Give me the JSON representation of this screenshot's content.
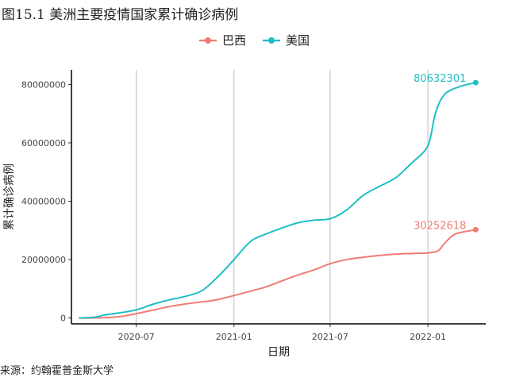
{
  "figure": {
    "title": "图15.1 美洲主要疫情国家累计确诊病例",
    "source": "来源：约翰霍普金斯大学"
  },
  "chart_data": {
    "type": "line",
    "title": "图15.1 美洲主要疫情国家累计确诊病例",
    "xlabel": "日期",
    "ylabel": "累计确诊病例",
    "xlim": [
      "2020-03-01",
      "2022-04-20"
    ],
    "ylim": [
      -2000000,
      85000000
    ],
    "x_ticks": [
      "2020-07",
      "2021-01",
      "2021-07",
      "2022-01"
    ],
    "x_tick_dates": [
      "2020-07-01",
      "2021-01-01",
      "2021-07-01",
      "2022-01-01"
    ],
    "y_ticks": [
      0,
      20000000,
      40000000,
      60000000,
      80000000
    ],
    "grid": "vertical-major",
    "legend": "top",
    "series": [
      {
        "name": "巴西",
        "color": "#F07C74",
        "x": [
          "2020-03-15",
          "2020-05-01",
          "2020-06-01",
          "2020-07-01",
          "2020-08-01",
          "2020-09-01",
          "2020-10-01",
          "2020-11-01",
          "2020-12-01",
          "2021-01-01",
          "2021-02-01",
          "2021-03-01",
          "2021-04-01",
          "2021-05-01",
          "2021-06-01",
          "2021-07-01",
          "2021-08-01",
          "2021-09-01",
          "2021-10-01",
          "2021-11-01",
          "2021-12-01",
          "2022-01-01",
          "2022-01-20",
          "2022-02-01",
          "2022-02-15",
          "2022-03-01",
          "2022-04-01"
        ],
        "values": [
          0,
          100000,
          500000,
          1500000,
          2700000,
          3900000,
          4800000,
          5500000,
          6300000,
          7700000,
          9200000,
          10600000,
          12700000,
          14700000,
          16500000,
          18600000,
          20000000,
          20800000,
          21400000,
          21900000,
          22100000,
          22300000,
          23000000,
          25500000,
          28000000,
          29200000,
          30252618
        ],
        "end_label": "30252618"
      },
      {
        "name": "美国",
        "color": "#1FBFC4",
        "x": [
          "2020-03-15",
          "2020-04-15",
          "2020-05-01",
          "2020-06-01",
          "2020-07-01",
          "2020-08-01",
          "2020-09-01",
          "2020-10-01",
          "2020-11-01",
          "2020-12-01",
          "2021-01-01",
          "2021-02-01",
          "2021-03-01",
          "2021-04-01",
          "2021-05-01",
          "2021-06-01",
          "2021-07-01",
          "2021-08-01",
          "2021-09-01",
          "2021-10-01",
          "2021-11-01",
          "2021-12-01",
          "2022-01-01",
          "2022-01-15",
          "2022-02-01",
          "2022-03-01",
          "2022-04-01"
        ],
        "values": [
          0,
          300000,
          1000000,
          1800000,
          2800000,
          4700000,
          6200000,
          7400000,
          9300000,
          14000000,
          20000000,
          26200000,
          28700000,
          30800000,
          32600000,
          33500000,
          34000000,
          37000000,
          42000000,
          45000000,
          48000000,
          53000000,
          59000000,
          70000000,
          76500000,
          79200000,
          80632301
        ],
        "end_label": "80632301"
      }
    ]
  }
}
